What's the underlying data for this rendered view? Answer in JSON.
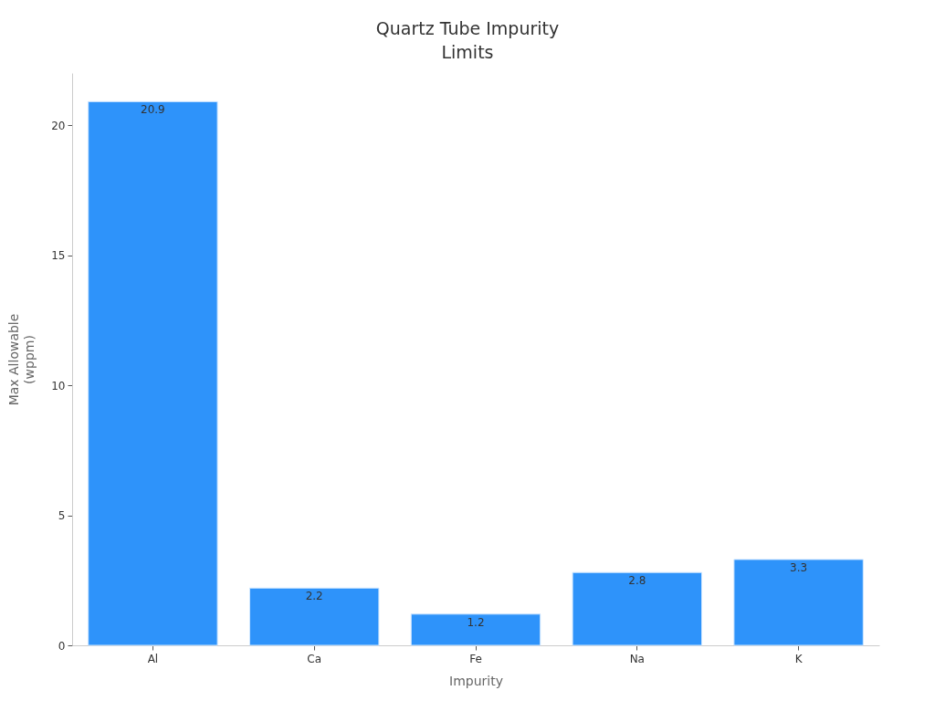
{
  "chart_data": {
    "type": "bar",
    "title": "Quartz Tube Impurity Limits",
    "xlabel": "Impurity",
    "ylabel": "Max Allowable (wppm)",
    "categories": [
      "Al",
      "Ca",
      "Fe",
      "Na",
      "K"
    ],
    "values": [
      20.9,
      2.2,
      1.2,
      2.8,
      3.3
    ],
    "color": "#2e93fa",
    "ylim": [
      0,
      22
    ],
    "yticks": [
      0,
      5,
      10,
      15,
      20
    ],
    "grid": false,
    "data_labels": true
  }
}
